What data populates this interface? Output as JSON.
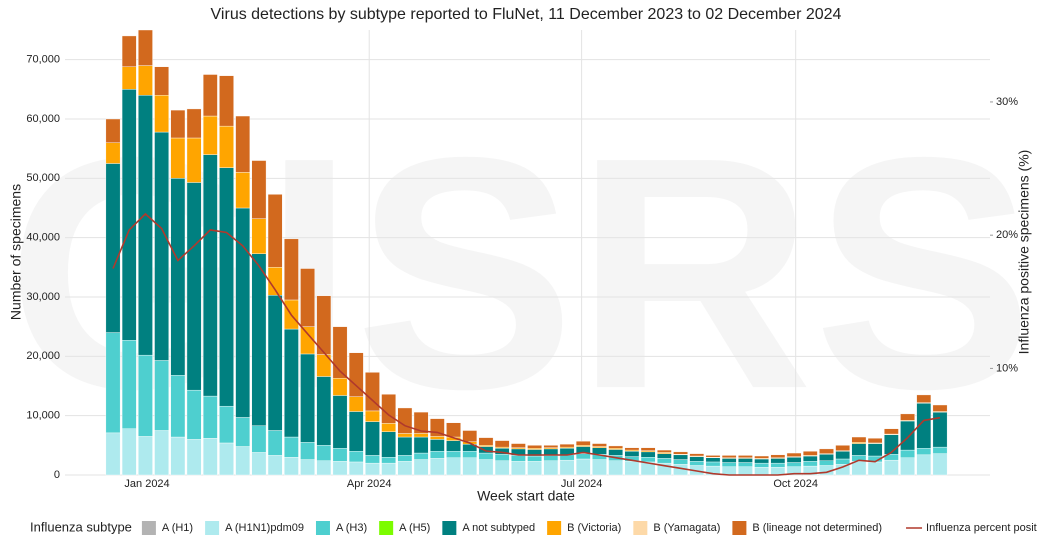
{
  "chart_data": {
    "type": "bar",
    "stacked": true,
    "watermark": "GISRS",
    "title": "Virus detections by subtype reported to FluNet, 11 December 2023 to 02 December 2024",
    "x_label": "Week start date",
    "y_label": "Number of specimens",
    "y2_label": "Influenza positive specimens (%)",
    "legend_title": "Influenza subtype",
    "grid": true,
    "categories": [
      null,
      null,
      null,
      null,
      null,
      null,
      null,
      null,
      null,
      null,
      null,
      null,
      null,
      null,
      null,
      null,
      null,
      null,
      null,
      null,
      null,
      null,
      null,
      null,
      null,
      null,
      null,
      null,
      null,
      null,
      null,
      null,
      null,
      null,
      null,
      null,
      null,
      null,
      null,
      null,
      null,
      null,
      null,
      null,
      null,
      null,
      null,
      null,
      null,
      null,
      null,
      null
    ],
    "xticks": [
      {
        "value": 2.1,
        "label": "Jan 2024"
      },
      {
        "value": 15.8,
        "label": "Apr 2024"
      },
      {
        "value": 28.9,
        "label": "Jul 2024"
      },
      {
        "value": 42.1,
        "label": "Oct 2024"
      }
    ],
    "ylim": [
      0,
      75000
    ],
    "yticks": [
      0,
      {
        "value": 10000,
        "label": "10,000"
      },
      {
        "value": 20000,
        "label": "20,000"
      },
      {
        "value": 30000,
        "label": "30,000"
      },
      {
        "value": 40000,
        "label": "40,000"
      },
      {
        "value": 50000,
        "label": "50,000"
      },
      {
        "value": 60000,
        "label": "60,000"
      },
      {
        "value": 70000,
        "label": "70,000"
      }
    ],
    "y2lim": [
      2,
      35.4
    ],
    "y2ticks": [
      {
        "value": 10,
        "label": "10%"
      },
      {
        "value": 20,
        "label": "20%"
      },
      {
        "value": 30,
        "label": "30%"
      }
    ],
    "series": [
      {
        "name": "A (H1)",
        "color": "#b3b3b3",
        "values": [
          0,
          0,
          0,
          0,
          0,
          0,
          0,
          0,
          0,
          0,
          0,
          0,
          0,
          0,
          0,
          0,
          0,
          0,
          0,
          0,
          0,
          0,
          0,
          0,
          0,
          0,
          0,
          0,
          0,
          0,
          0,
          0,
          0,
          0,
          0,
          0,
          0,
          0,
          0,
          0,
          0,
          0,
          0,
          0,
          0,
          0,
          0,
          0,
          0,
          0,
          0,
          0
        ]
      },
      {
        "name": "A (H1N1)pdm09",
        "color": "#aeeaee",
        "values": [
          7100,
          7800,
          6500,
          7500,
          6400,
          6000,
          6200,
          5400,
          4800,
          3800,
          3300,
          3000,
          2600,
          2400,
          2300,
          2200,
          2000,
          2000,
          2300,
          2600,
          2800,
          2900,
          2900,
          2600,
          2400,
          2300,
          2300,
          2400,
          2500,
          2700,
          2600,
          2400,
          2300,
          2200,
          2000,
          1800,
          1600,
          1500,
          1400,
          1400,
          1300,
          1300,
          1400,
          1500,
          1600,
          1800,
          2300,
          2200,
          2500,
          2900,
          3400,
          3600
        ]
      },
      {
        "name": "A (H3)",
        "color": "#4ecfcf",
        "values": [
          16900,
          14900,
          13700,
          11800,
          10400,
          8300,
          7100,
          6200,
          4900,
          4500,
          4200,
          3400,
          2900,
          2600,
          2200,
          1800,
          1300,
          1000,
          1000,
          1100,
          1200,
          1100,
          1100,
          1100,
          1100,
          1000,
          900,
          900,
          900,
          900,
          900,
          900,
          800,
          800,
          800,
          800,
          700,
          700,
          700,
          700,
          700,
          700,
          700,
          800,
          800,
          900,
          1000,
          1000,
          1000,
          1300,
          1100,
          1100
        ]
      },
      {
        "name": "A (H5)",
        "color": "#7cfc00",
        "values": [
          0,
          0,
          0,
          0,
          0,
          0,
          0,
          0,
          0,
          0,
          0,
          0,
          0,
          0,
          0,
          0,
          0,
          0,
          0,
          0,
          0,
          0,
          0,
          0,
          0,
          0,
          0,
          0,
          0,
          0,
          0,
          0,
          0,
          0,
          0,
          0,
          0,
          0,
          0,
          0,
          0,
          0,
          0,
          0,
          0,
          0,
          0,
          0,
          0,
          0,
          0,
          0
        ]
      },
      {
        "name": "A not subtyped",
        "color": "#008080",
        "values": [
          28500,
          42300,
          43800,
          38500,
          33200,
          35000,
          40700,
          40200,
          35300,
          29000,
          22800,
          18200,
          14900,
          11600,
          8900,
          6700,
          5700,
          4300,
          3100,
          2700,
          2000,
          1800,
          1200,
          1100,
          1000,
          1100,
          1100,
          1100,
          1100,
          1200,
          1100,
          1000,
          900,
          900,
          800,
          800,
          800,
          700,
          700,
          700,
          700,
          800,
          900,
          900,
          1100,
          1300,
          2000,
          2100,
          3300,
          4900,
          7600,
          5900
        ]
      },
      {
        "name": "B (Victoria)",
        "color": "#ffa500",
        "values": [
          3500,
          3800,
          5000,
          6200,
          6800,
          7500,
          6500,
          7000,
          6000,
          5900,
          4700,
          4900,
          4600,
          3700,
          2900,
          2500,
          1800,
          1400,
          600,
          600,
          500,
          600,
          400,
          200,
          200,
          200,
          200,
          200,
          200,
          200,
          200,
          200,
          200,
          200,
          200,
          100,
          100,
          100,
          100,
          100,
          100,
          100,
          100,
          100,
          100,
          100,
          200,
          100,
          100,
          100,
          100,
          100
        ]
      },
      {
        "name": "B (Yamagata)",
        "color": "#fdd9a8",
        "values": [
          0,
          0,
          0,
          0,
          0,
          0,
          0,
          0,
          0,
          0,
          0,
          0,
          0,
          0,
          0,
          0,
          0,
          0,
          0,
          0,
          0,
          0,
          0,
          0,
          0,
          0,
          0,
          0,
          0,
          0,
          0,
          0,
          0,
          0,
          0,
          0,
          0,
          0,
          0,
          0,
          0,
          0,
          0,
          0,
          0,
          0,
          0,
          0,
          0,
          0,
          0,
          0
        ]
      },
      {
        "name": "B (lineage not determined)",
        "color": "#d2691e",
        "values": [
          4000,
          5200,
          6000,
          4800,
          4700,
          4900,
          7000,
          8500,
          9500,
          9800,
          12300,
          10300,
          9800,
          9900,
          8700,
          7400,
          6500,
          4900,
          4300,
          3600,
          3000,
          2400,
          1900,
          1300,
          1100,
          700,
          500,
          400,
          500,
          700,
          500,
          400,
          400,
          500,
          400,
          400,
          400,
          300,
          400,
          400,
          400,
          500,
          600,
          700,
          800,
          900,
          900,
          800,
          900,
          1100,
          1300,
          1100
        ]
      },
      {
        "name": "Influenza percent positive",
        "color": "#b0392c",
        "type": "line",
        "axis": "y2",
        "values": [
          17.5,
          20.4,
          21.6,
          20.5,
          18.1,
          19.2,
          20.4,
          20.2,
          19.2,
          17.7,
          15.9,
          14.0,
          12.6,
          11.2,
          9.8,
          8.7,
          7.6,
          6.5,
          5.7,
          5.3,
          5.2,
          4.8,
          4.4,
          3.8,
          3.7,
          3.5,
          3.5,
          3.5,
          3.5,
          3.7,
          3.5,
          3.3,
          3.1,
          2.9,
          2.7,
          2.5,
          2.3,
          2.1,
          2.0,
          2.0,
          2.0,
          2.0,
          2.1,
          2.1,
          2.2,
          2.6,
          3.1,
          3.0,
          3.7,
          4.8,
          6.1,
          6.3
        ]
      }
    ]
  }
}
